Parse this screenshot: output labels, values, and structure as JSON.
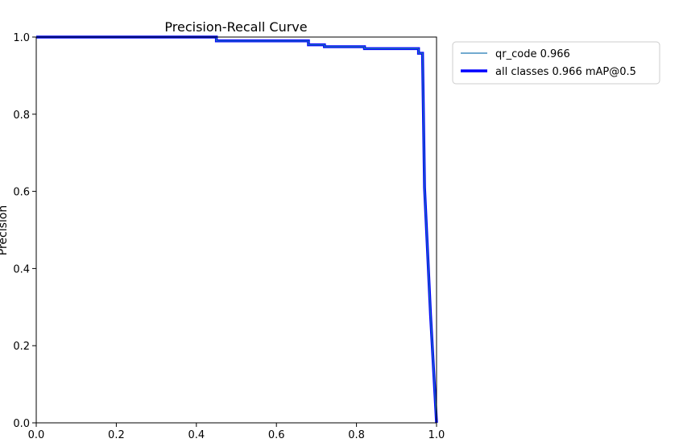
{
  "chart_data": {
    "type": "line",
    "title": "Precision-Recall Curve",
    "xlabel": "",
    "ylabel": "Precision",
    "xlim": [
      0.0,
      1.0
    ],
    "ylim": [
      0.0,
      1.0
    ],
    "xticks": [
      "0.0",
      "0.2",
      "0.4",
      "0.6",
      "0.8",
      "1.0"
    ],
    "yticks": [
      "0.0",
      "0.2",
      "0.4",
      "0.6",
      "0.8",
      "1.0"
    ],
    "grid": false,
    "legend_position": "outside-upper-right",
    "series": [
      {
        "name": "qr_code 0.966",
        "color": "#1f77b4",
        "x": [
          0.0,
          0.45,
          0.45,
          0.68,
          0.68,
          0.72,
          0.72,
          0.82,
          0.82,
          0.955,
          0.955,
          0.965,
          0.965,
          0.97,
          0.97,
          0.978,
          0.978,
          0.985,
          1.0
        ],
        "y": [
          1.0,
          1.0,
          0.99,
          0.99,
          0.98,
          0.98,
          0.975,
          0.975,
          0.97,
          0.97,
          0.958,
          0.958,
          0.955,
          0.61,
          0.61,
          0.435,
          0.435,
          0.28,
          0.0
        ]
      },
      {
        "name": "all classes 0.966 mAP@0.5",
        "color": "#0000ff",
        "x": [
          0.0,
          0.45,
          0.45,
          0.68,
          0.68,
          0.72,
          0.72,
          0.82,
          0.82,
          0.955,
          0.955,
          0.965,
          0.965,
          0.97,
          0.97,
          0.978,
          0.978,
          0.985,
          1.0
        ],
        "y": [
          1.0,
          1.0,
          0.99,
          0.99,
          0.98,
          0.98,
          0.975,
          0.975,
          0.97,
          0.97,
          0.958,
          0.958,
          0.955,
          0.61,
          0.61,
          0.435,
          0.435,
          0.28,
          0.0
        ]
      }
    ]
  }
}
